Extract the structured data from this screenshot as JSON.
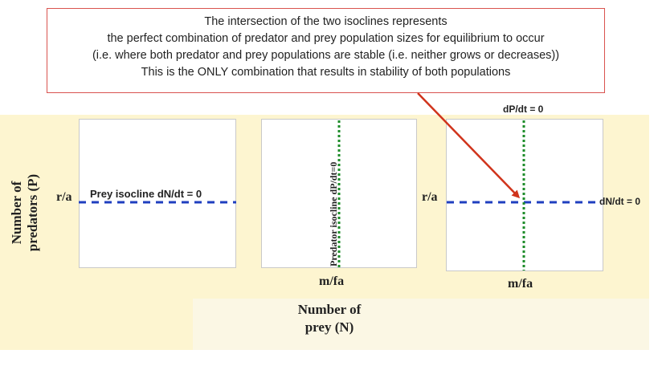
{
  "callout": {
    "line1": "The intersection of the two isoclines represents",
    "line2": "the perfect combination of predator and prey population sizes for equilibrium to occur",
    "line3": "(i.e. where both predator and prey populations are stable (i.e. neither grows or decreases))",
    "line4": "This is the ONLY combination that results in stability of both populations"
  },
  "axes": {
    "y_label_line1": "Number of",
    "y_label_line2": "predators (P)",
    "x_label_line1": "Number of",
    "x_label_line2": "prey (N)"
  },
  "panel1": {
    "y_tick": "r/a",
    "isocline_label": "Prey isocline dN/dt = 0"
  },
  "panel2": {
    "isocline_label": "Predator isocline dP/dt=0",
    "x_tick": "m/fa"
  },
  "panel3": {
    "top_label": "dP/dt = 0",
    "right_label": "dN/dt = 0",
    "y_tick": "r/a",
    "x_tick": "m/fa"
  },
  "colors": {
    "prey_isocline": "#1f3fbf",
    "predator_isocline": "#1e8c2a",
    "arrow": "#d0341c",
    "background_band": "#fdf5d0"
  }
}
